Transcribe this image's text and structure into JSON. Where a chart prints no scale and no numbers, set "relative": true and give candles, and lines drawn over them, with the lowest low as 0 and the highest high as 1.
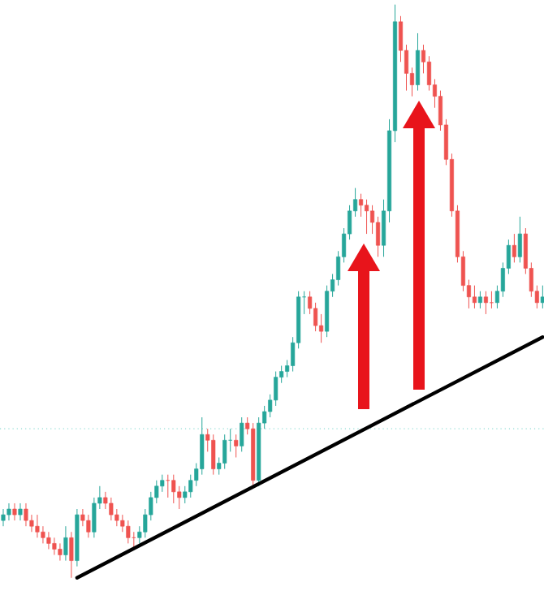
{
  "chart_data": {
    "type": "candlestick",
    "relative": true,
    "categories": [
      null,
      null,
      null,
      null,
      null,
      null,
      null,
      null,
      null,
      null,
      null,
      null,
      null,
      null,
      null,
      null,
      null,
      null,
      null,
      null,
      null,
      null,
      null,
      null,
      null,
      null,
      null,
      null,
      null,
      null,
      null,
      null,
      null,
      null,
      null,
      null,
      null,
      null,
      null,
      null,
      null,
      null,
      null,
      null,
      null,
      null,
      null,
      null,
      null,
      null,
      null,
      null,
      null,
      null,
      null,
      null,
      null,
      null,
      null,
      null,
      null,
      null,
      null,
      null,
      null,
      null,
      null,
      null,
      null,
      null,
      null,
      null,
      null,
      null,
      null,
      null,
      null,
      null,
      null,
      null,
      null,
      null,
      null,
      null,
      null,
      null,
      null,
      null,
      null,
      null,
      null,
      null,
      null,
      null,
      null,
      null
    ],
    "series": [
      {
        "ohlc": [
          [
            0.1,
            0.12,
            0.09,
            0.11
          ],
          [
            0.11,
            0.13,
            0.1,
            0.12
          ],
          [
            0.12,
            0.13,
            0.1,
            0.11
          ],
          [
            0.11,
            0.13,
            0.1,
            0.12
          ],
          [
            0.12,
            0.13,
            0.09,
            0.1
          ],
          [
            0.1,
            0.11,
            0.08,
            0.09
          ],
          [
            0.09,
            0.11,
            0.07,
            0.08
          ],
          [
            0.08,
            0.09,
            0.06,
            0.07
          ],
          [
            0.07,
            0.08,
            0.05,
            0.06
          ],
          [
            0.06,
            0.07,
            0.04,
            0.05
          ],
          [
            0.05,
            0.06,
            0.03,
            0.04
          ],
          [
            0.04,
            0.09,
            0.03,
            0.07
          ],
          [
            0.07,
            0.08,
            0,
            0.03
          ],
          [
            0.03,
            0.12,
            0.02,
            0.11
          ],
          [
            0.11,
            0.12,
            0.09,
            0.1
          ],
          [
            0.1,
            0.11,
            0.07,
            0.08
          ],
          [
            0.08,
            0.14,
            0.07,
            0.13
          ],
          [
            0.13,
            0.16,
            0.12,
            0.14
          ],
          [
            0.14,
            0.15,
            0.12,
            0.13
          ],
          [
            0.13,
            0.14,
            0.1,
            0.11
          ],
          [
            0.11,
            0.12,
            0.09,
            0.1
          ],
          [
            0.1,
            0.11,
            0.08,
            0.09
          ],
          [
            0.09,
            0.1,
            0.06,
            0.07
          ],
          [
            0.07,
            0.08,
            0.05,
            0.07
          ],
          [
            0.07,
            0.09,
            0.06,
            0.08
          ],
          [
            0.08,
            0.12,
            0.07,
            0.11
          ],
          [
            0.11,
            0.15,
            0.1,
            0.14
          ],
          [
            0.14,
            0.17,
            0.13,
            0.16
          ],
          [
            0.16,
            0.18,
            0.15,
            0.17
          ],
          [
            0.17,
            0.18,
            0.14,
            0.17
          ],
          [
            0.17,
            0.18,
            0.13,
            0.15
          ],
          [
            0.15,
            0.16,
            0.12,
            0.14
          ],
          [
            0.14,
            0.16,
            0.13,
            0.15
          ],
          [
            0.15,
            0.18,
            0.14,
            0.17
          ],
          [
            0.17,
            0.2,
            0.16,
            0.19
          ],
          [
            0.19,
            0.28,
            0.18,
            0.25
          ],
          [
            0.25,
            0.26,
            0.22,
            0.24
          ],
          [
            0.24,
            0.25,
            0.18,
            0.19
          ],
          [
            0.19,
            0.21,
            0.18,
            0.2
          ],
          [
            0.2,
            0.25,
            0.19,
            0.24
          ],
          [
            0.24,
            0.26,
            0.22,
            0.24
          ],
          [
            0.24,
            0.25,
            0.21,
            0.23
          ],
          [
            0.23,
            0.28,
            0.22,
            0.27
          ],
          [
            0.27,
            0.28,
            0.25,
            0.26
          ],
          [
            0.26,
            0.27,
            0.16,
            0.17
          ],
          [
            0.17,
            0.28,
            0.16,
            0.27
          ],
          [
            0.27,
            0.3,
            0.26,
            0.29
          ],
          [
            0.29,
            0.32,
            0.28,
            0.31
          ],
          [
            0.31,
            0.36,
            0.3,
            0.35
          ],
          [
            0.35,
            0.37,
            0.34,
            0.36
          ],
          [
            0.36,
            0.38,
            0.35,
            0.37
          ],
          [
            0.37,
            0.42,
            0.36,
            0.41
          ],
          [
            0.41,
            0.5,
            0.4,
            0.49
          ],
          [
            0.49,
            0.5,
            0.46,
            0.49
          ],
          [
            0.49,
            0.5,
            0.46,
            0.47
          ],
          [
            0.47,
            0.48,
            0.43,
            0.44
          ],
          [
            0.44,
            0.46,
            0.41,
            0.43
          ],
          [
            0.43,
            0.51,
            0.42,
            0.5
          ],
          [
            0.5,
            0.53,
            0.49,
            0.52
          ],
          [
            0.52,
            0.57,
            0.51,
            0.56
          ],
          [
            0.56,
            0.61,
            0.55,
            0.6
          ],
          [
            0.6,
            0.65,
            0.59,
            0.64
          ],
          [
            0.64,
            0.68,
            0.63,
            0.66
          ],
          [
            0.66,
            0.67,
            0.63,
            0.65
          ],
          [
            0.65,
            0.66,
            0.6,
            0.64
          ],
          [
            0.64,
            0.65,
            0.6,
            0.62
          ],
          [
            0.62,
            0.63,
            0.56,
            0.58
          ],
          [
            0.58,
            0.66,
            0.56,
            0.64
          ],
          [
            0.64,
            0.8,
            0.62,
            0.78
          ],
          [
            0.78,
            1,
            0.76,
            0.97
          ],
          [
            0.97,
            0.98,
            0.9,
            0.92
          ],
          [
            0.92,
            0.93,
            0.85,
            0.88
          ],
          [
            0.88,
            0.89,
            0.84,
            0.86
          ],
          [
            0.86,
            0.95,
            0.85,
            0.92
          ],
          [
            0.92,
            0.93,
            0.88,
            0.9
          ],
          [
            0.9,
            0.91,
            0.85,
            0.86
          ],
          [
            0.86,
            0.87,
            0.82,
            0.84
          ],
          [
            0.84,
            0.85,
            0.78,
            0.79
          ],
          [
            0.79,
            0.8,
            0.72,
            0.73
          ],
          [
            0.73,
            0.74,
            0.63,
            0.64
          ],
          [
            0.64,
            0.65,
            0.55,
            0.56
          ],
          [
            0.56,
            0.57,
            0.5,
            0.51
          ],
          [
            0.51,
            0.52,
            0.47,
            0.49
          ],
          [
            0.49,
            0.51,
            0.47,
            0.48
          ],
          [
            0.48,
            0.5,
            0.47,
            0.49
          ],
          [
            0.49,
            0.5,
            0.46,
            0.48
          ],
          [
            0.48,
            0.5,
            0.47,
            0.48
          ],
          [
            0.48,
            0.51,
            0.47,
            0.5
          ],
          [
            0.5,
            0.55,
            0.49,
            0.54
          ],
          [
            0.54,
            0.59,
            0.53,
            0.58
          ],
          [
            0.58,
            0.6,
            0.55,
            0.56
          ],
          [
            0.56,
            0.63,
            0.55,
            0.6
          ],
          [
            0.6,
            0.61,
            0.53,
            0.54
          ],
          [
            0.54,
            0.55,
            0.49,
            0.5
          ],
          [
            0.5,
            0.51,
            0.47,
            0.48
          ],
          [
            0.48,
            0.51,
            0.47,
            0.49
          ]
        ],
        "colors": [
          "#26a69a",
          "#26a69a",
          "#ef5350",
          "#26a69a",
          "#ef5350",
          "#ef5350",
          "#ef5350",
          "#ef5350",
          "#ef5350",
          "#ef5350",
          "#ef5350",
          "#26a69a",
          "#ef5350",
          "#26a69a",
          "#ef5350",
          "#ef5350",
          "#26a69a",
          "#26a69a",
          "#ef5350",
          "#ef5350",
          "#ef5350",
          "#ef5350",
          "#ef5350",
          "#ef5350",
          "#26a69a",
          "#26a69a",
          "#26a69a",
          "#26a69a",
          "#26a69a",
          "#ef5350",
          "#ef5350",
          "#ef5350",
          "#26a69a",
          "#26a69a",
          "#26a69a",
          "#26a69a",
          "#ef5350",
          "#ef5350",
          "#26a69a",
          "#26a69a",
          "#26a69a",
          "#ef5350",
          "#26a69a",
          "#ef5350",
          "#ef5350",
          "#26a69a",
          "#26a69a",
          "#26a69a",
          "#26a69a",
          "#26a69a",
          "#26a69a",
          "#26a69a",
          "#26a69a",
          "#26a69a",
          "#ef5350",
          "#ef5350",
          "#ef5350",
          "#26a69a",
          "#26a69a",
          "#26a69a",
          "#26a69a",
          "#26a69a",
          "#26a69a",
          "#ef5350",
          "#ef5350",
          "#ef5350",
          "#ef5350",
          "#26a69a",
          "#26a69a",
          "#26a69a",
          "#ef5350",
          "#ef5350",
          "#ef5350",
          "#26a69a",
          "#ef5350",
          "#ef5350",
          "#ef5350",
          "#ef5350",
          "#ef5350",
          "#ef5350",
          "#ef5350",
          "#ef5350",
          "#ef5350",
          "#ef5350",
          "#26a69a",
          "#ef5350",
          "#ef5350",
          "#26a69a",
          "#26a69a",
          "#26a69a",
          "#ef5350",
          "#26a69a",
          "#ef5350",
          "#ef5350",
          "#ef5350",
          "#26a69a"
        ]
      },
      {
        "type": "line",
        "values": [
          null,
          null,
          null,
          null,
          null,
          null,
          null,
          null,
          null,
          null,
          null,
          null,
          null,
          0,
          null,
          null,
          null,
          null,
          null,
          null,
          null,
          null,
          null,
          null,
          null,
          null,
          null,
          null,
          null,
          null,
          null,
          null,
          null,
          null,
          null,
          null,
          null,
          null,
          null,
          null,
          null,
          null,
          null,
          null,
          null,
          null,
          null,
          null,
          null,
          null,
          null,
          null,
          null,
          null,
          null,
          null,
          null,
          null,
          null,
          null,
          null,
          null,
          null,
          null,
          null,
          null,
          null,
          null,
          null,
          null,
          null,
          null,
          null,
          null,
          null,
          null,
          null,
          null,
          null,
          null,
          null,
          null,
          null,
          null,
          null,
          null,
          null,
          null,
          null,
          null,
          null,
          null,
          null,
          null,
          null,
          0.42
        ],
        "color": "#000000"
      }
    ],
    "ref_lines": [
      {
        "axis": "y",
        "value": 0.26,
        "color": "#8fdcd4",
        "line_style": "dotted"
      }
    ]
  }
}
